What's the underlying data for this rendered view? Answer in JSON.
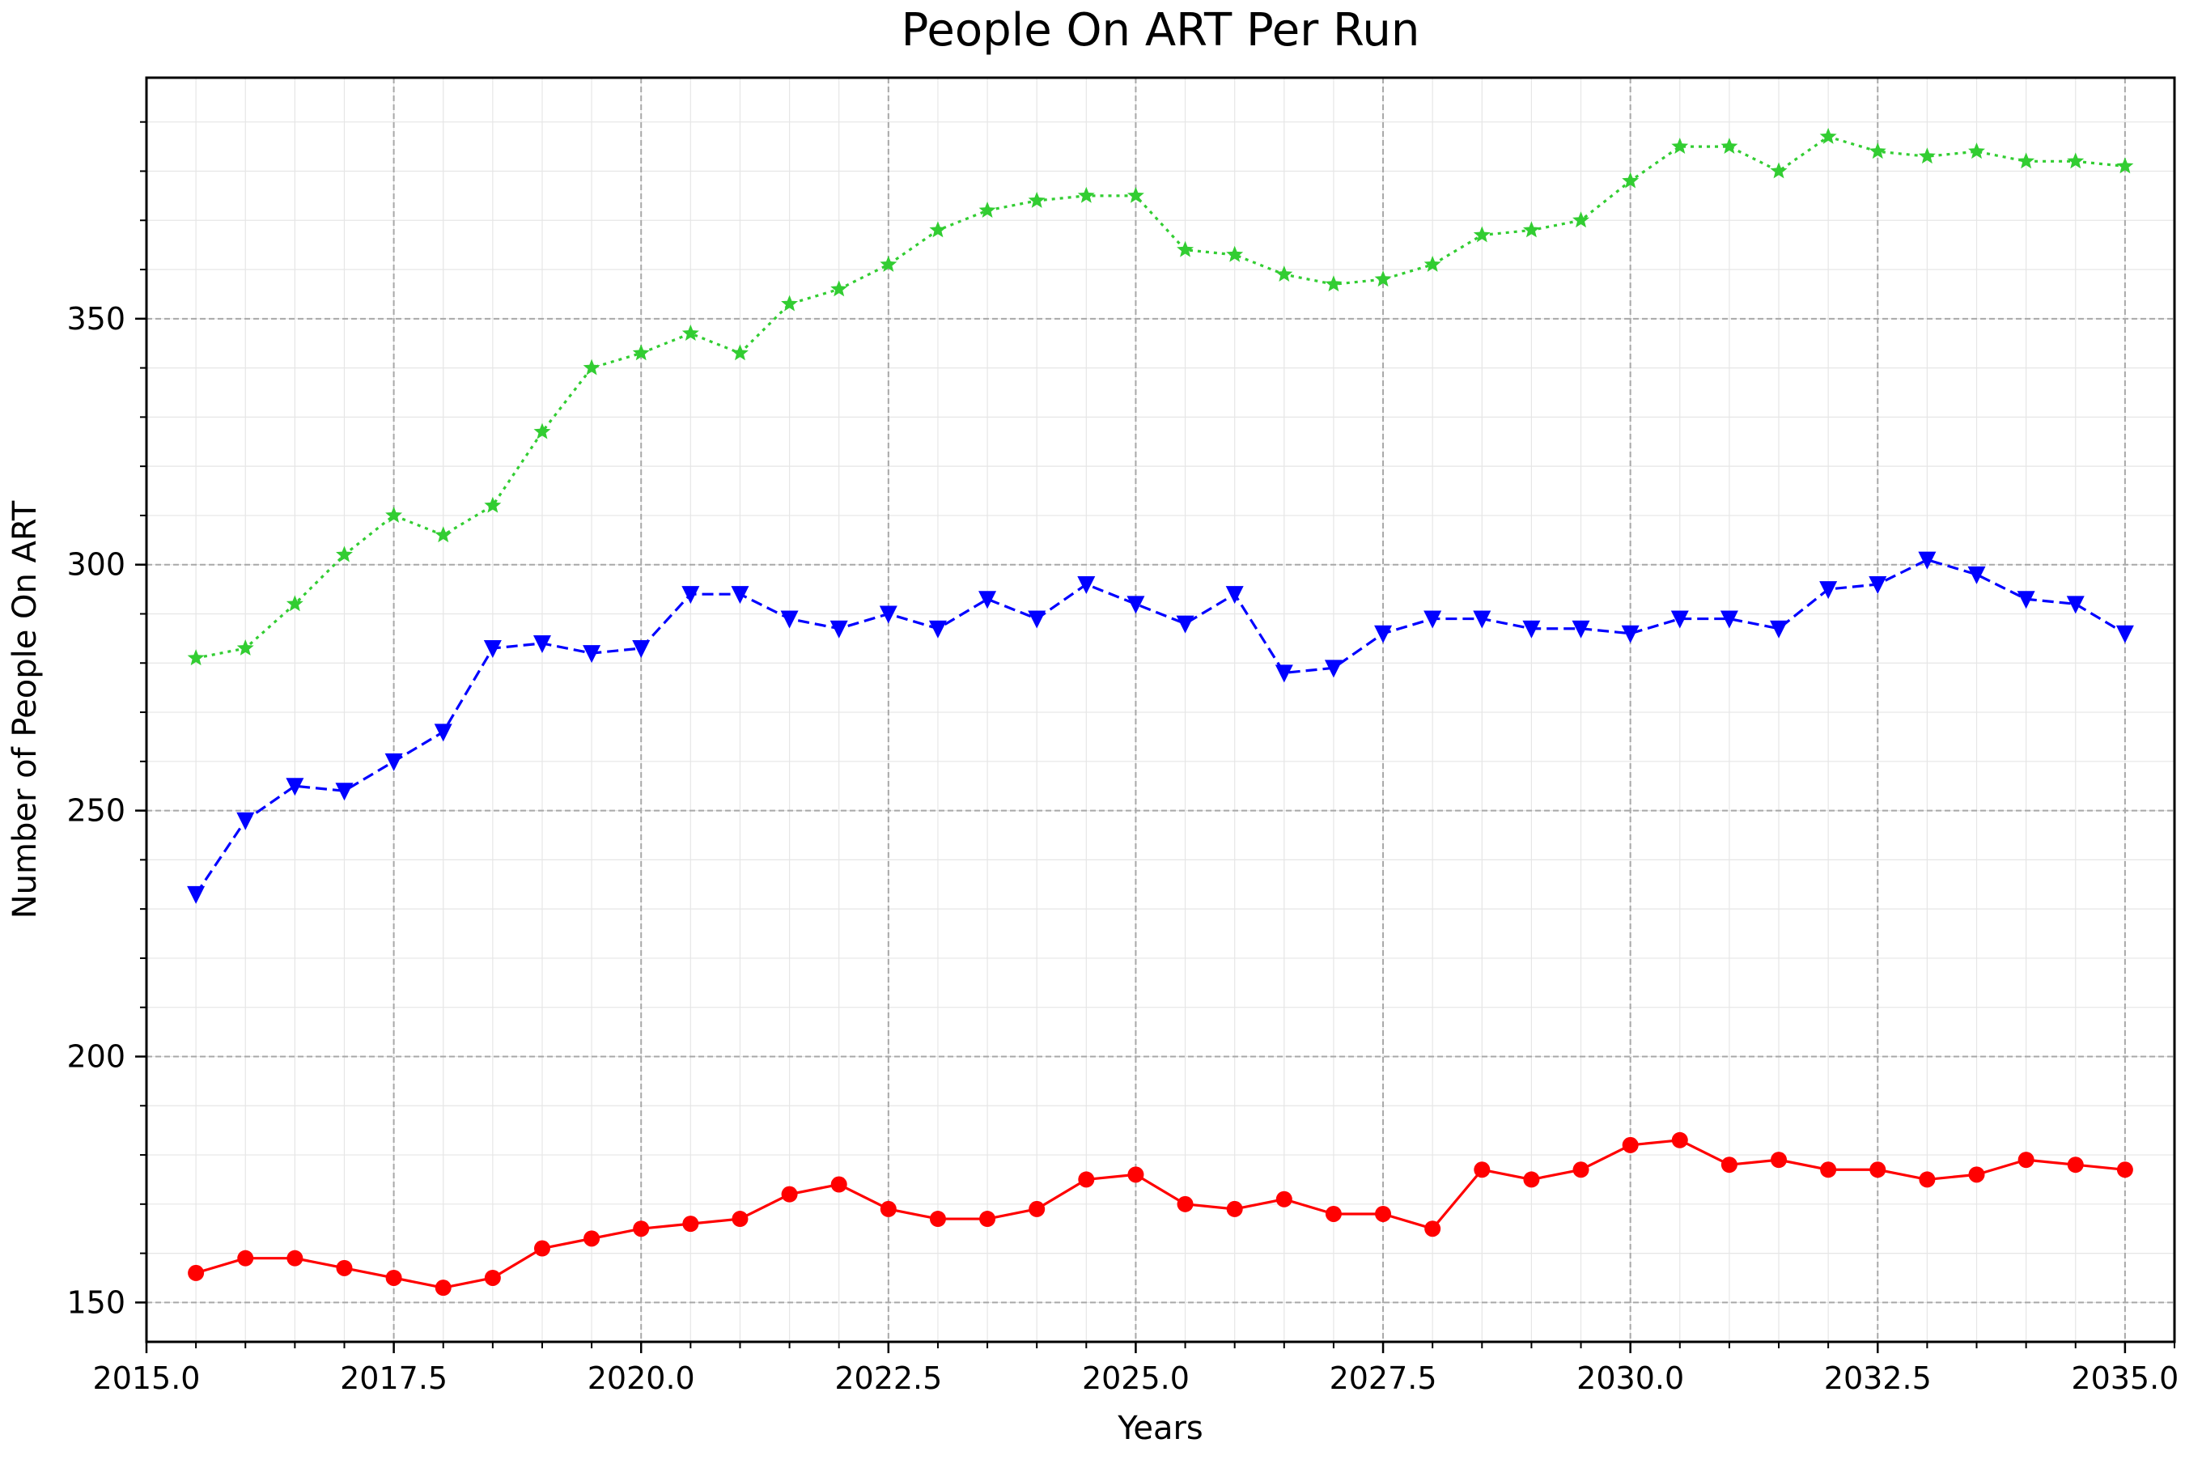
{
  "chart_data": {
    "type": "line",
    "title": "People On ART Per Run",
    "xlabel": "Years",
    "ylabel": "Number of People On ART",
    "xlim": [
      2015.0,
      2035.5
    ],
    "ylim": [
      142,
      399
    ],
    "grid": true,
    "x_ticks": [
      2015.0,
      2017.5,
      2020.0,
      2022.5,
      2025.0,
      2027.5,
      2030.0,
      2032.5,
      2035.0
    ],
    "x_tick_labels": [
      "2015.0",
      "2017.5",
      "2020.0",
      "2022.5",
      "2025.0",
      "2027.5",
      "2030.0",
      "2032.5",
      "2035.0"
    ],
    "y_ticks": [
      150,
      200,
      250,
      300,
      350
    ],
    "y_tick_labels": [
      "150",
      "200",
      "250",
      "300",
      "350"
    ],
    "x": [
      2015.5,
      2016.0,
      2016.5,
      2017.0,
      2017.5,
      2018.0,
      2018.5,
      2019.0,
      2019.5,
      2020.0,
      2020.5,
      2021.0,
      2021.5,
      2022.0,
      2022.5,
      2023.0,
      2023.5,
      2024.0,
      2024.5,
      2025.0,
      2025.5,
      2026.0,
      2026.5,
      2027.0,
      2027.5,
      2028.0,
      2028.5,
      2029.0,
      2029.5,
      2030.0,
      2030.5,
      2031.0,
      2031.5,
      2032.0,
      2032.5,
      2033.0,
      2033.5,
      2034.0,
      2034.5,
      2035.0
    ],
    "series": [
      {
        "color": "#ff0000",
        "line_style": "solid",
        "marker": "circle",
        "values": [
          156,
          159,
          159,
          157,
          155,
          153,
          155,
          161,
          163,
          165,
          166,
          167,
          172,
          174,
          169,
          167,
          167,
          169,
          175,
          176,
          170,
          169,
          171,
          168,
          168,
          165,
          177,
          175,
          177,
          182,
          183,
          178,
          179,
          177,
          177,
          175,
          176,
          179,
          178,
          177
        ]
      },
      {
        "color": "#0000ff",
        "line_style": "dashed",
        "marker": "triangle-down",
        "values": [
          233,
          248,
          255,
          254,
          260,
          266,
          283,
          284,
          282,
          283,
          294,
          294,
          289,
          287,
          290,
          287,
          293,
          289,
          296,
          292,
          288,
          294,
          278,
          279,
          286,
          289,
          289,
          287,
          287,
          286,
          289,
          289,
          287,
          295,
          296,
          301,
          298,
          293,
          292,
          286
        ]
      },
      {
        "color": "#32cd32",
        "line_style": "dotted",
        "marker": "star",
        "values": [
          281,
          283,
          292,
          302,
          310,
          306,
          312,
          327,
          340,
          343,
          347,
          343,
          353,
          356,
          361,
          368,
          372,
          374,
          375,
          375,
          364,
          363,
          359,
          357,
          358,
          361,
          367,
          368,
          370,
          378,
          385,
          385,
          380,
          387,
          384,
          383,
          384,
          382,
          382,
          381
        ]
      }
    ]
  }
}
